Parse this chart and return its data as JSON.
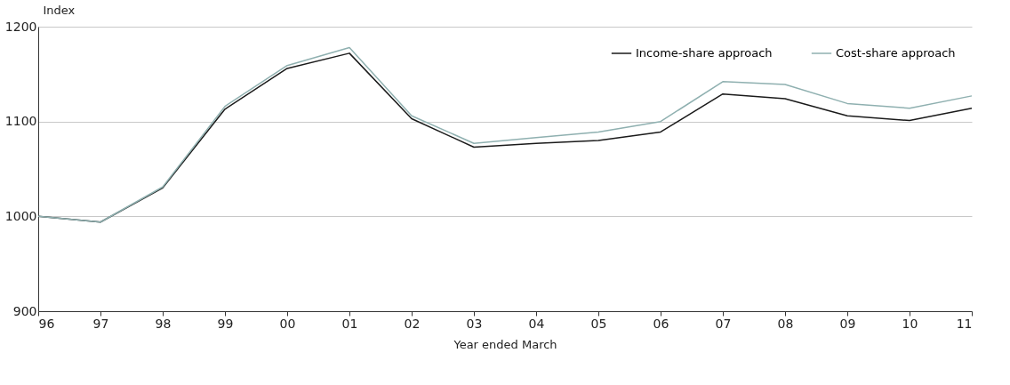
{
  "chart_data": {
    "type": "line",
    "xlabel": "Year ended March",
    "ylabel": "Index",
    "categories": [
      "96",
      "97",
      "98",
      "99",
      "00",
      "01",
      "02",
      "03",
      "04",
      "05",
      "06",
      "07",
      "08",
      "09",
      "10",
      "11"
    ],
    "series": [
      {
        "name": "Income-share approach",
        "color": "#1a1a1a",
        "values": [
          1000,
          994,
          1030,
          1113,
          1156,
          1172,
          1103,
          1073,
          1077,
          1080,
          1089,
          1129,
          1124,
          1106,
          1101,
          1114
        ]
      },
      {
        "name": "Cost-share approach",
        "color": "#8fb0b0",
        "values": [
          1000,
          994,
          1031,
          1116,
          1159,
          1178,
          1106,
          1077,
          1083,
          1089,
          1100,
          1142,
          1139,
          1119,
          1114,
          1127
        ]
      }
    ],
    "ylim": [
      900,
      1200
    ],
    "yticks": [
      900,
      1000,
      1100,
      1200
    ],
    "grid": "y",
    "legend": "top right",
    "marker": "none",
    "line_style": "solid"
  }
}
